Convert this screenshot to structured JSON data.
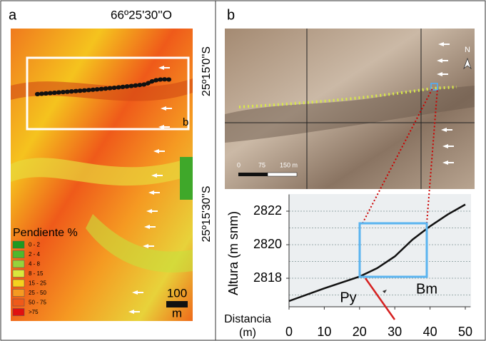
{
  "panels": {
    "a": {
      "label": "a",
      "longitude": "66º25'30''O",
      "latitudes": [
        "25º15'0''S",
        "25º15'30''S"
      ],
      "inset_label": "b",
      "legend": {
        "title": "Pendiente %",
        "classes": [
          {
            "label": "0 - 2",
            "color": "#1f9a1f"
          },
          {
            "label": "2 - 4",
            "color": "#4fb82c"
          },
          {
            "label": "4 - 8",
            "color": "#96d23c"
          },
          {
            "label": "8 - 15",
            "color": "#d9e83c"
          },
          {
            "label": "15 - 25",
            "color": "#f5d21e"
          },
          {
            "label": "25 - 50",
            "color": "#f59a22"
          },
          {
            "label": "50 - 75",
            "color": "#ef5a1a"
          },
          {
            "label": ">75",
            "color": "#e01010"
          }
        ]
      },
      "scale": {
        "value": "100",
        "unit": "m"
      }
    },
    "b": {
      "label": "b",
      "north": "N",
      "scale": [
        "0",
        "75",
        "150 m"
      ]
    }
  },
  "chart_data": {
    "type": "line",
    "y_label": "Altura (m snm)",
    "x_label_lines": [
      "Distancia",
      "(m)"
    ],
    "annotations": [
      "Py",
      "Bm"
    ],
    "x": [
      0,
      10,
      20,
      25,
      30,
      35,
      40,
      45,
      50
    ],
    "series": [
      {
        "color": "#111111",
        "values": [
          2816.64,
          2817.4,
          2818.1,
          2818.6,
          2819.3,
          2820.3,
          2821.1,
          2821.8,
          2822.4
        ]
      }
    ],
    "xlim": [
      0,
      51.5
    ],
    "ylim": [
      2816.3,
      2823.0
    ],
    "xticks": [
      0,
      10,
      20,
      30,
      40,
      50
    ],
    "yticks": [
      2818,
      2820,
      2822
    ],
    "ygrid": [
      2817,
      2818,
      2819,
      2820,
      2821,
      2822
    ]
  }
}
